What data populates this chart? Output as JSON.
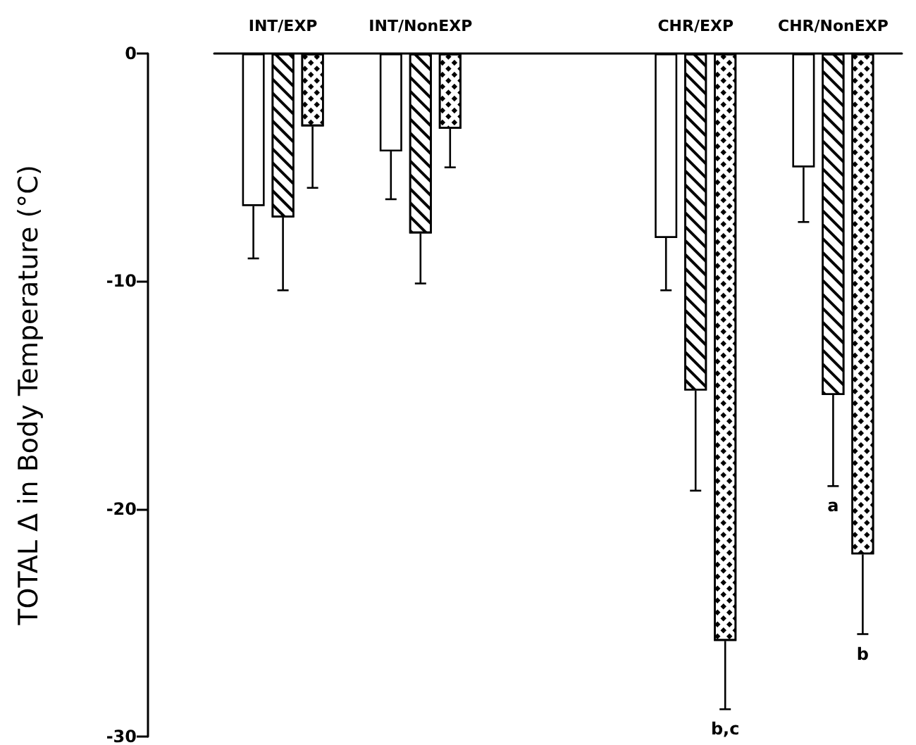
{
  "chart_data": {
    "type": "bar",
    "ylabel": "TOTAL Δ in Body Temperature (°C)",
    "categories": [
      "INT/EXP",
      "INT/NonEXP",
      null,
      "CHR/EXP",
      "CHR/NonEXP"
    ],
    "series": [
      {
        "color": "#ffffff",
        "values": [
          -6.7,
          -4.3,
          null,
          -8.1,
          -5.0
        ],
        "errors": [
          [
            -9.0,
            -6.7
          ],
          [
            -6.4,
            -4.3
          ],
          null,
          [
            -10.4,
            -8.1
          ],
          [
            -7.4,
            -5.0
          ]
        ]
      },
      {
        "color": "#ffffff",
        "values": [
          -7.2,
          -7.9,
          null,
          -14.8,
          -15.0
        ],
        "errors": [
          [
            -10.4,
            -7.2
          ],
          [
            -10.1,
            -7.9
          ],
          null,
          [
            -19.2,
            -14.8
          ],
          [
            -19.0,
            -15.0
          ]
        ]
      },
      {
        "color": "#ffffff",
        "values": [
          -3.2,
          -3.3,
          null,
          -25.8,
          -22.0
        ],
        "errors": [
          [
            -5.9,
            -3.2
          ],
          [
            -5.0,
            -3.3
          ],
          null,
          [
            -28.8,
            -25.8
          ],
          [
            -25.5,
            -22.0
          ]
        ]
      }
    ],
    "ylim": [
      -30,
      0
    ],
    "yticks": [
      0,
      -10,
      -20,
      -30
    ],
    "annotations": [
      "b,c",
      {
        "text": "a",
        "x": "CHR/NonEXP",
        "y": -19.0
      },
      "b"
    ],
    "grid": false
  }
}
